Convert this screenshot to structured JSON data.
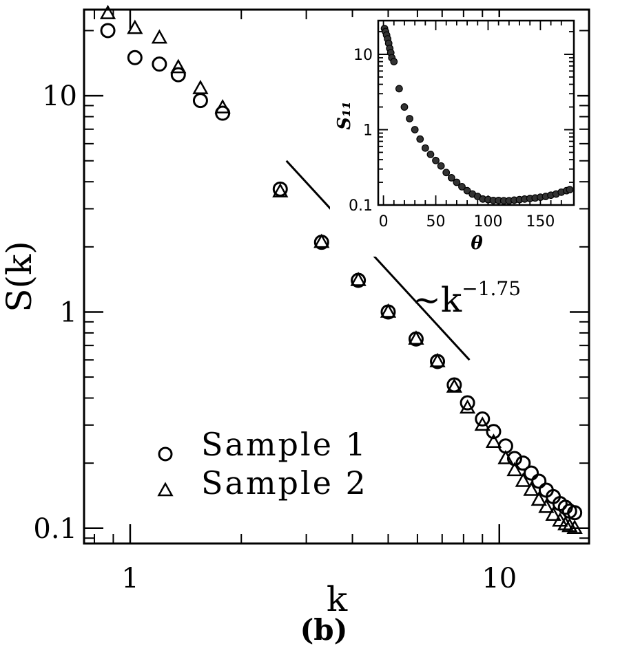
{
  "caption": "(b)",
  "chart_data": [
    {
      "type": "scatter",
      "title": "",
      "xlabel": "k",
      "ylabel": "S(k)",
      "xscale": "log",
      "yscale": "log",
      "xlim": [
        0.75,
        17.5
      ],
      "ylim": [
        0.085,
        25
      ],
      "xtick_labels": [
        {
          "value": 1,
          "label": "1"
        },
        {
          "value": 10,
          "label": "10"
        }
      ],
      "ytick_labels": [
        {
          "value": 0.1,
          "label": "0.1"
        },
        {
          "value": 1,
          "label": "1"
        },
        {
          "value": 10,
          "label": "10"
        }
      ],
      "legend": {
        "position": "bottom-left"
      },
      "series": [
        {
          "name": "Sample 1",
          "marker": "circle",
          "x": [
            0.87,
            1.03,
            1.2,
            1.35,
            1.55,
            1.78,
            2.55,
            3.3,
            4.15,
            5.0,
            5.95,
            6.8,
            7.55,
            8.2,
            9.0,
            9.65,
            10.4,
            11.0,
            11.6,
            12.2,
            12.8,
            13.4,
            14.0,
            14.6,
            15.1,
            15.5,
            16.0
          ],
          "y": [
            20.0,
            15.0,
            14.0,
            12.5,
            9.5,
            8.3,
            3.7,
            2.1,
            1.4,
            1.0,
            0.75,
            0.59,
            0.46,
            0.38,
            0.32,
            0.28,
            0.24,
            0.21,
            0.2,
            0.18,
            0.165,
            0.15,
            0.14,
            0.13,
            0.125,
            0.12,
            0.118
          ]
        },
        {
          "name": "Sample 2",
          "marker": "triangle",
          "x": [
            0.87,
            1.03,
            1.2,
            1.35,
            1.55,
            1.78,
            2.55,
            3.3,
            4.15,
            5.0,
            5.95,
            6.8,
            7.55,
            8.2,
            9.0,
            9.65,
            10.4,
            11.0,
            11.6,
            12.2,
            12.8,
            13.4,
            14.0,
            14.6,
            15.1,
            15.5,
            16.0
          ],
          "y": [
            24.0,
            20.5,
            18.5,
            13.5,
            10.8,
            8.8,
            3.6,
            2.1,
            1.4,
            1.0,
            0.75,
            0.59,
            0.45,
            0.36,
            0.3,
            0.25,
            0.21,
            0.185,
            0.165,
            0.15,
            0.135,
            0.125,
            0.115,
            0.108,
            0.104,
            0.102,
            0.1
          ]
        }
      ],
      "annotation": {
        "text": "~k",
        "exponent": "−1.75",
        "guide_line": {
          "x": [
            2.65,
            8.3
          ],
          "y": [
            5.0,
            0.6
          ]
        }
      }
    },
    {
      "type": "scatter",
      "title": "",
      "xlabel": "θ",
      "ylabel": "S₁₁",
      "xscale": "linear",
      "yscale": "log",
      "xlim": [
        -5,
        182
      ],
      "ylim": [
        0.1,
        28
      ],
      "xtick_labels": [
        {
          "value": 0,
          "label": "0"
        },
        {
          "value": 50,
          "label": "50"
        },
        {
          "value": 100,
          "label": "100"
        },
        {
          "value": 150,
          "label": "150"
        }
      ],
      "ytick_labels": [
        {
          "value": 0.1,
          "label": "0.1"
        },
        {
          "value": 1,
          "label": "1"
        },
        {
          "value": 10,
          "label": "10"
        }
      ],
      "series": [
        {
          "marker": "circle-filled",
          "x": [
            1,
            2,
            3,
            4,
            5,
            6,
            7,
            8,
            10,
            15,
            20,
            25,
            30,
            35,
            40,
            45,
            50,
            55,
            60,
            65,
            70,
            75,
            80,
            85,
            90,
            95,
            100,
            105,
            110,
            115,
            120,
            125,
            130,
            135,
            140,
            145,
            150,
            155,
            160,
            165,
            170,
            175,
            178
          ],
          "y": [
            22.0,
            20.0,
            18.0,
            16.0,
            14.0,
            12.0,
            10.5,
            9.0,
            8.0,
            3.5,
            2.0,
            1.4,
            1.0,
            0.75,
            0.57,
            0.47,
            0.39,
            0.33,
            0.27,
            0.23,
            0.2,
            0.175,
            0.155,
            0.14,
            0.13,
            0.12,
            0.118,
            0.115,
            0.115,
            0.114,
            0.114,
            0.116,
            0.118,
            0.12,
            0.122,
            0.124,
            0.127,
            0.13,
            0.135,
            0.14,
            0.148,
            0.155,
            0.16
          ]
        }
      ]
    }
  ]
}
